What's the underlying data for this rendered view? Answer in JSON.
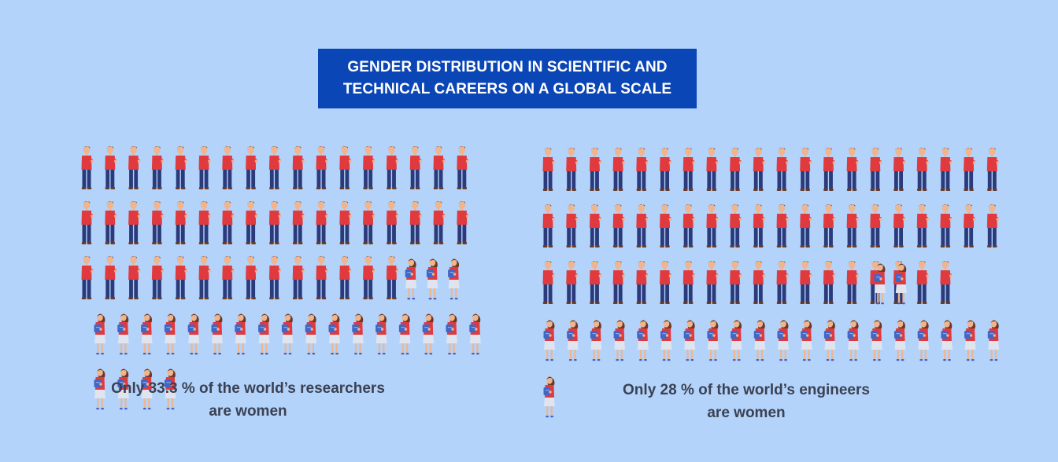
{
  "title": {
    "line1": "GENDER DISTRIBUTION IN SCIENTIFIC AND",
    "line2": "TECHNICAL CAREERS ON A GLOBAL SCALE"
  },
  "chart_data": [
    {
      "type": "pictogram",
      "total": 72,
      "series": [
        {
          "category": "men",
          "count": 48
        },
        {
          "category": "women",
          "count": 24
        }
      ],
      "caption": {
        "line1": "Only 33.3 % of the world’s researchers",
        "line2": "are women"
      },
      "percent_women": 33.3
    },
    {
      "type": "pictogram",
      "total": 81,
      "series": [
        {
          "category": "men",
          "count": 58
        },
        {
          "category": "women",
          "count": 23
        }
      ],
      "caption": {
        "line1": "Only 28 % of the world’s engineers",
        "line2": "are women"
      },
      "percent_women": 28
    }
  ],
  "colors": {
    "background": "#b3d3fb",
    "title_box": "#0b46b7",
    "shirt": "#e03a3f",
    "pants": "#2a3a7a",
    "skin": "#efb58e",
    "hair": "#6b3a26",
    "skirt": "#dfe4ef",
    "book": "#3f67c6"
  }
}
